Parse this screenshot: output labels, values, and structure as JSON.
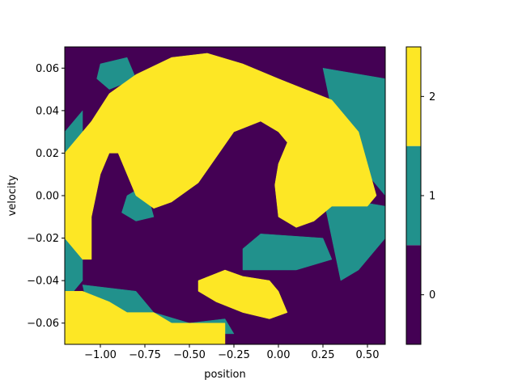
{
  "chart_data": {
    "type": "heatmap",
    "title": "",
    "xlabel": "position",
    "ylabel": "velocity",
    "xlim": [
      -1.2,
      0.6
    ],
    "ylim": [
      -0.07,
      0.07
    ],
    "x_ticks": [
      {
        "value": -1.0,
        "label": "−1.00"
      },
      {
        "value": -0.75,
        "label": "−0.75"
      },
      {
        "value": -0.5,
        "label": "−0.50"
      },
      {
        "value": -0.25,
        "label": "−0.25"
      },
      {
        "value": 0.0,
        "label": "0.00"
      },
      {
        "value": 0.25,
        "label": "0.25"
      },
      {
        "value": 0.5,
        "label": "0.50"
      }
    ],
    "y_ticks": [
      {
        "value": 0.06,
        "label": "0.06"
      },
      {
        "value": 0.04,
        "label": "0.04"
      },
      {
        "value": 0.02,
        "label": "0.02"
      },
      {
        "value": 0.0,
        "label": "0.00"
      },
      {
        "value": -0.02,
        "label": "−0.02"
      },
      {
        "value": -0.04,
        "label": "−0.04"
      },
      {
        "value": -0.06,
        "label": "−0.06"
      }
    ],
    "colorbar": {
      "levels": [
        {
          "value": 0,
          "label": "0",
          "color": "#440154"
        },
        {
          "value": 1,
          "label": "1",
          "color": "#21918c"
        },
        {
          "value": 2,
          "label": "2",
          "color": "#fde725"
        }
      ]
    },
    "regions": [
      {
        "class": 0,
        "polygon": [
          [
            -1.2,
            -0.07
          ],
          [
            0.6,
            -0.07
          ],
          [
            0.6,
            0.07
          ],
          [
            -1.2,
            0.07
          ]
        ]
      },
      {
        "class": 1,
        "polygon": [
          [
            -1.2,
            0.03
          ],
          [
            -1.1,
            0.04
          ],
          [
            -1.1,
            -0.04
          ],
          [
            -1.2,
            -0.05
          ]
        ]
      },
      {
        "class": 1,
        "polygon": [
          [
            -1.0,
            0.062
          ],
          [
            -0.85,
            0.065
          ],
          [
            -0.8,
            0.055
          ],
          [
            -0.95,
            0.05
          ],
          [
            -1.02,
            0.055
          ]
        ]
      },
      {
        "class": 1,
        "polygon": [
          [
            0.25,
            0.06
          ],
          [
            0.6,
            0.055
          ],
          [
            0.6,
            0.0
          ],
          [
            0.4,
            0.02
          ],
          [
            0.3,
            0.04
          ]
        ]
      },
      {
        "class": 1,
        "polygon": [
          [
            0.25,
            0.0
          ],
          [
            0.6,
            -0.005
          ],
          [
            0.6,
            -0.02
          ],
          [
            0.45,
            -0.035
          ],
          [
            0.35,
            -0.04
          ],
          [
            0.3,
            -0.02
          ]
        ]
      },
      {
        "class": 1,
        "polygon": [
          [
            -0.1,
            -0.018
          ],
          [
            0.25,
            -0.02
          ],
          [
            0.3,
            -0.03
          ],
          [
            0.1,
            -0.035
          ],
          [
            -0.05,
            -0.035
          ],
          [
            -0.2,
            -0.035
          ],
          [
            -0.2,
            -0.025
          ]
        ]
      },
      {
        "class": 1,
        "polygon": [
          [
            -0.85,
            0.0
          ],
          [
            -0.75,
            0.005
          ],
          [
            -0.7,
            -0.01
          ],
          [
            -0.8,
            -0.012
          ],
          [
            -0.88,
            -0.008
          ]
        ]
      },
      {
        "class": 1,
        "polygon": [
          [
            -1.1,
            -0.042
          ],
          [
            -0.8,
            -0.045
          ],
          [
            -0.7,
            -0.055
          ],
          [
            -0.5,
            -0.06
          ],
          [
            -0.3,
            -0.058
          ],
          [
            -0.25,
            -0.065
          ],
          [
            -0.5,
            -0.065
          ],
          [
            -0.85,
            -0.062
          ],
          [
            -1.05,
            -0.06
          ]
        ]
      },
      {
        "class": 2,
        "polygon": [
          [
            -1.2,
            0.02
          ],
          [
            -1.05,
            0.035
          ],
          [
            -0.95,
            0.048
          ],
          [
            -0.8,
            0.057
          ],
          [
            -0.6,
            0.065
          ],
          [
            -0.4,
            0.067
          ],
          [
            -0.2,
            0.062
          ],
          [
            0.0,
            0.055
          ],
          [
            0.15,
            0.05
          ],
          [
            0.3,
            0.045
          ],
          [
            0.45,
            0.03
          ],
          [
            0.55,
            0.0
          ],
          [
            0.5,
            -0.005
          ],
          [
            0.3,
            -0.005
          ],
          [
            0.2,
            -0.012
          ],
          [
            0.1,
            -0.015
          ],
          [
            0.0,
            -0.01
          ],
          [
            -0.02,
            0.005
          ],
          [
            0.0,
            0.015
          ],
          [
            0.05,
            0.025
          ],
          [
            0.0,
            0.03
          ],
          [
            -0.1,
            0.035
          ],
          [
            -0.25,
            0.03
          ],
          [
            -0.35,
            0.018
          ],
          [
            -0.45,
            0.006
          ],
          [
            -0.6,
            -0.003
          ],
          [
            -0.7,
            -0.006
          ],
          [
            -0.8,
            0.0
          ],
          [
            -0.85,
            0.01
          ],
          [
            -0.9,
            0.02
          ],
          [
            -0.95,
            0.02
          ],
          [
            -1.0,
            0.01
          ],
          [
            -1.05,
            -0.01
          ],
          [
            -1.05,
            -0.03
          ],
          [
            -1.1,
            -0.03
          ],
          [
            -1.2,
            -0.02
          ]
        ]
      },
      {
        "class": 2,
        "polygon": [
          [
            -1.2,
            -0.045
          ],
          [
            -1.1,
            -0.045
          ],
          [
            -0.95,
            -0.05
          ],
          [
            -0.85,
            -0.055
          ],
          [
            -0.7,
            -0.055
          ],
          [
            -0.6,
            -0.06
          ],
          [
            -0.3,
            -0.06
          ],
          [
            -0.3,
            -0.07
          ],
          [
            -1.2,
            -0.07
          ]
        ]
      },
      {
        "class": 2,
        "polygon": [
          [
            -0.45,
            -0.04
          ],
          [
            -0.3,
            -0.035
          ],
          [
            -0.2,
            -0.038
          ],
          [
            -0.05,
            -0.04
          ],
          [
            0.0,
            -0.045
          ],
          [
            0.05,
            -0.055
          ],
          [
            -0.05,
            -0.058
          ],
          [
            -0.2,
            -0.055
          ],
          [
            -0.35,
            -0.05
          ],
          [
            -0.45,
            -0.045
          ]
        ]
      }
    ]
  }
}
